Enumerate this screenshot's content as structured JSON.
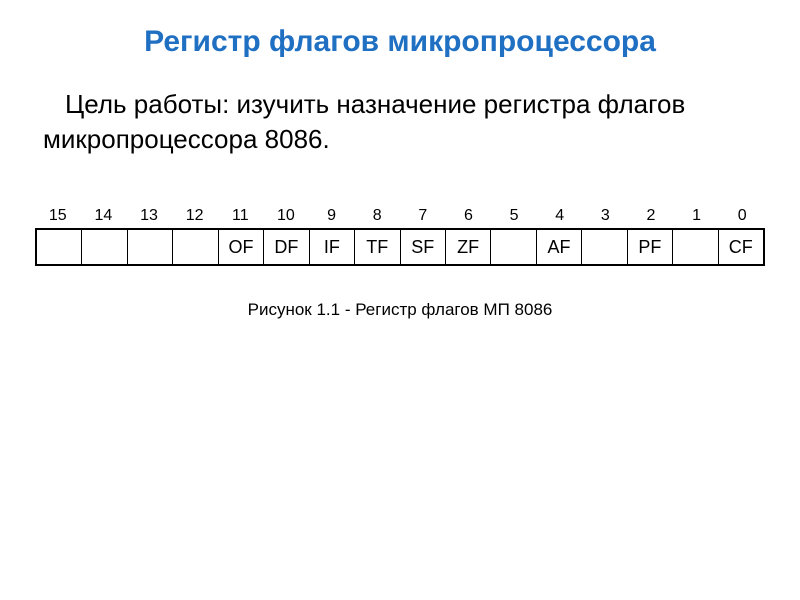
{
  "title": {
    "text": "Регистр флагов микропроцессора",
    "color": "#1f6fc2",
    "fontsize": 30
  },
  "goal": {
    "text": "Цель работы: изучить назначение регистра флагов микропроцессора 8086.",
    "color": "#000000",
    "fontsize": 26
  },
  "register": {
    "bit_index_fontsize": 16,
    "bit_index_color": "#000000",
    "cell_fontsize": 18,
    "cell_color": "#000000",
    "border_color": "#000000",
    "bits": [
      {
        "index": "15",
        "flag": ""
      },
      {
        "index": "14",
        "flag": ""
      },
      {
        "index": "13",
        "flag": ""
      },
      {
        "index": "12",
        "flag": ""
      },
      {
        "index": "11",
        "flag": "OF"
      },
      {
        "index": "10",
        "flag": "DF"
      },
      {
        "index": "9",
        "flag": "IF"
      },
      {
        "index": "8",
        "flag": "TF"
      },
      {
        "index": "7",
        "flag": "SF"
      },
      {
        "index": "6",
        "flag": "ZF"
      },
      {
        "index": "5",
        "flag": ""
      },
      {
        "index": "4",
        "flag": "AF"
      },
      {
        "index": "3",
        "flag": ""
      },
      {
        "index": "2",
        "flag": "PF"
      },
      {
        "index": "1",
        "flag": ""
      },
      {
        "index": "0",
        "flag": "CF"
      }
    ]
  },
  "caption": {
    "text": "Рисунок 1.1 - Регистр флагов МП 8086",
    "color": "#000000",
    "fontsize": 17
  }
}
